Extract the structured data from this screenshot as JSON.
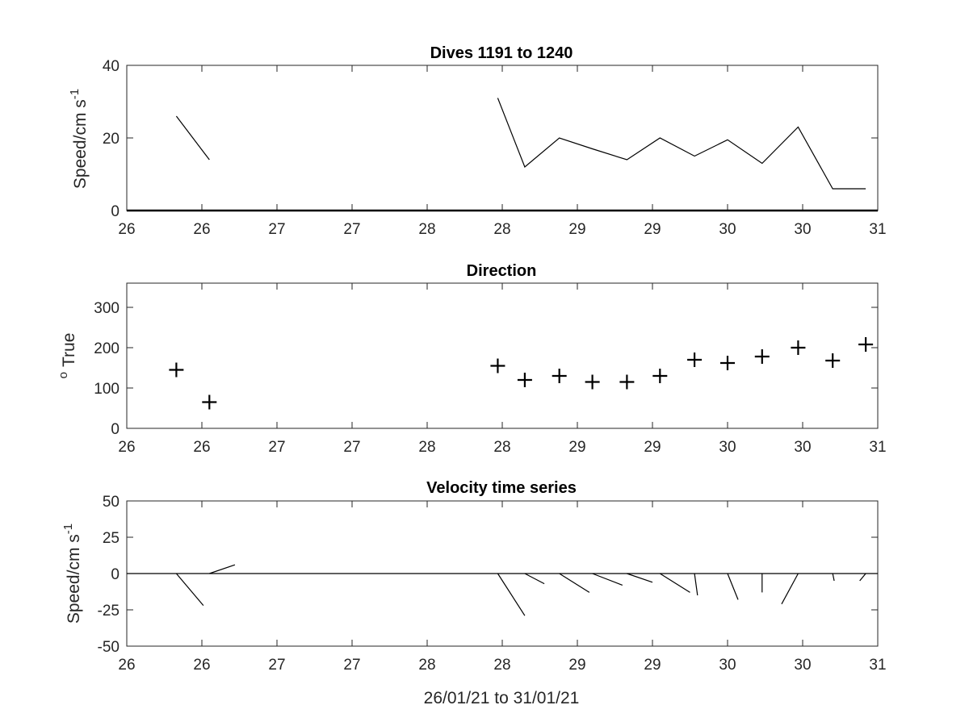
{
  "chart_data": [
    {
      "type": "line",
      "title": "Dives 1191 to 1240",
      "ylabel_main": "Speed/cm s",
      "ylabel_sup": "-1",
      "xlim": [
        26.0,
        31.0
      ],
      "ylim": [
        0,
        40
      ],
      "x_ticks": [
        26.0,
        26.5,
        27.0,
        27.5,
        28.0,
        28.5,
        29.0,
        29.5,
        30.0,
        30.5,
        31.0
      ],
      "x_tick_labels": [
        "26",
        "26",
        "27",
        "27",
        "28",
        "28",
        "29",
        "29",
        "30",
        "30",
        "31"
      ],
      "y_ticks": [
        0,
        20,
        40
      ],
      "y_tick_labels": [
        "0",
        "20",
        "40"
      ],
      "series": [
        {
          "x": [
            26.33,
            26.55
          ],
          "y": [
            26,
            14
          ]
        },
        {
          "x": [
            28.47,
            28.65,
            28.88,
            29.1,
            29.33,
            29.55,
            29.78,
            30.0,
            30.23,
            30.47,
            30.7,
            30.92
          ],
          "y": [
            31,
            12,
            20,
            17,
            14,
            20,
            15,
            19.5,
            13,
            23,
            6,
            6
          ]
        }
      ]
    },
    {
      "type": "scatter",
      "title": "Direction",
      "ylabel_main": "True",
      "ylabel_sup": "o",
      "xlim": [
        26.0,
        31.0
      ],
      "ylim": [
        0,
        360
      ],
      "x_ticks": [
        26.0,
        26.5,
        27.0,
        27.5,
        28.0,
        28.5,
        29.0,
        29.5,
        30.0,
        30.5,
        31.0
      ],
      "x_tick_labels": [
        "26",
        "26",
        "27",
        "27",
        "28",
        "28",
        "29",
        "29",
        "30",
        "30",
        "31"
      ],
      "y_ticks": [
        0,
        100,
        200,
        300
      ],
      "y_tick_labels": [
        "0",
        "100",
        "200",
        "300"
      ],
      "x": [
        26.33,
        26.55,
        28.47,
        28.65,
        28.88,
        29.1,
        29.33,
        29.55,
        29.78,
        30.0,
        30.23,
        30.47,
        30.7,
        30.92
      ],
      "y": [
        145,
        65,
        155,
        120,
        130,
        115,
        115,
        130,
        170,
        162,
        178,
        200,
        168,
        208
      ]
    },
    {
      "type": "line",
      "title": "Velocity time series",
      "ylabel_main": "Speed/cm s",
      "ylabel_sup": "-1",
      "xlabel": "26/01/21 to 31/01/21",
      "xlim": [
        26.0,
        31.0
      ],
      "ylim": [
        -50,
        50
      ],
      "x_ticks": [
        26.0,
        26.5,
        27.0,
        27.5,
        28.0,
        28.5,
        29.0,
        29.5,
        30.0,
        30.5,
        31.0
      ],
      "x_tick_labels": [
        "26",
        "26",
        "27",
        "27",
        "28",
        "28",
        "29",
        "29",
        "30",
        "30",
        "31"
      ],
      "y_ticks": [
        -50,
        -25,
        0,
        25,
        50
      ],
      "y_tick_labels": [
        "-50",
        "-25",
        "0",
        "25",
        "50"
      ],
      "stick_vectors": [
        {
          "x0": 26.33,
          "x1": 26.51,
          "y1": -22
        },
        {
          "x0": 26.55,
          "x1": 26.72,
          "y1": 6
        },
        {
          "x0": 28.47,
          "x1": 28.65,
          "y1": -29
        },
        {
          "x0": 28.65,
          "x1": 28.78,
          "y1": -7
        },
        {
          "x0": 28.88,
          "x1": 29.08,
          "y1": -13
        },
        {
          "x0": 29.1,
          "x1": 29.3,
          "y1": -8
        },
        {
          "x0": 29.33,
          "x1": 29.5,
          "y1": -6
        },
        {
          "x0": 29.55,
          "x1": 29.75,
          "y1": -13
        },
        {
          "x0": 29.78,
          "x1": 29.8,
          "y1": -15
        },
        {
          "x0": 30.0,
          "x1": 30.07,
          "y1": -18
        },
        {
          "x0": 30.23,
          "x1": 30.23,
          "y1": -13
        },
        {
          "x0": 30.47,
          "x1": 30.36,
          "y1": -21
        },
        {
          "x0": 30.7,
          "x1": 30.71,
          "y1": -5
        },
        {
          "x0": 30.92,
          "x1": 30.88,
          "y1": -5
        }
      ]
    }
  ]
}
